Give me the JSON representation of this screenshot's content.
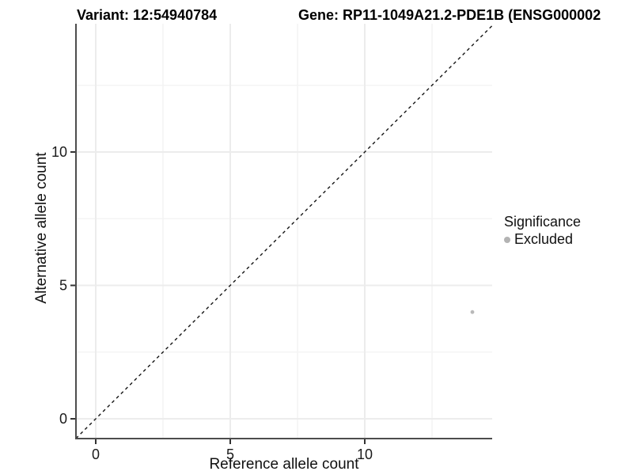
{
  "titles": {
    "variant": "Variant: 12:54940784",
    "gene": "Gene: RP11-1049A21.2-PDE1B (ENSG000002"
  },
  "legend": {
    "title": "Significance",
    "items": [
      {
        "label": "Excluded",
        "color": "#b3b3b3"
      }
    ]
  },
  "chart_data": {
    "type": "scatter",
    "title_left": "Variant: 12:54940784",
    "title_right": "Gene: RP11-1049A21.2-PDE1B (ENSG000002",
    "xlabel": "Reference allele count",
    "ylabel": "Alternative allele count",
    "xlim": [
      -0.74,
      14.74
    ],
    "ylim": [
      -0.74,
      14.8
    ],
    "x_ticks": [
      0,
      5,
      10
    ],
    "y_ticks": [
      0,
      5,
      10
    ],
    "x_minor_ticks": [
      2.5,
      7.5,
      12.5
    ],
    "y_minor_ticks": [
      2.5,
      7.5,
      12.5
    ],
    "grid": {
      "major": true,
      "minor": true
    },
    "reference_line": {
      "type": "identity",
      "slope": 1,
      "intercept": 0,
      "style": "dashed",
      "color": "#151515"
    },
    "series": [
      {
        "name": "Excluded",
        "marker": "circle",
        "color": "#b9b9b9",
        "points": [
          [
            14,
            4
          ]
        ]
      }
    ],
    "legend_position": "right",
    "colors": {
      "axis_line": "#4d4d4d",
      "tick": "#333333",
      "tick_label": "#1a1a1a",
      "grid_major": "#ececec",
      "grid_minor": "#f4f4f4"
    }
  }
}
